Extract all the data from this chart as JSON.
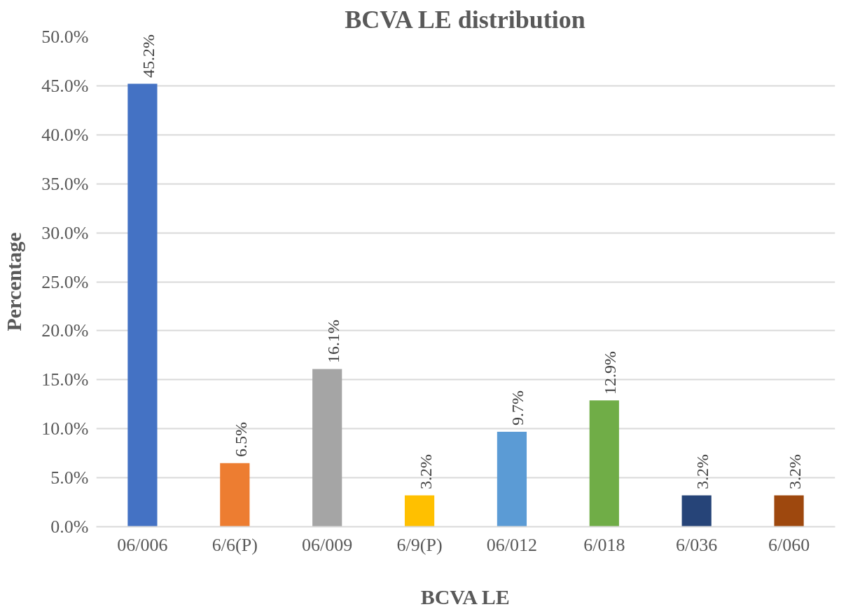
{
  "chart_data": {
    "type": "bar",
    "title": "BCVA LE distribution",
    "xlabel": "BCVA LE",
    "ylabel": "Percentage",
    "categories": [
      "06/006",
      "6/6(P)",
      "06/009",
      "6/9(P)",
      "06/012",
      "6/018",
      "6/036",
      "6/060"
    ],
    "values": [
      45.2,
      6.5,
      16.1,
      3.2,
      9.7,
      12.9,
      3.2,
      3.2
    ],
    "colors": [
      "#4472c4",
      "#ed7d31",
      "#a5a5a5",
      "#ffc000",
      "#5b9bd5",
      "#70ad47",
      "#264478",
      "#9e480e"
    ],
    "value_labels": [
      "45.2%",
      "6.5%",
      "16.1%",
      "3.2%",
      "9.7%",
      "12.9%",
      "3.2%",
      "3.2%"
    ],
    "ylim": [
      0,
      50
    ],
    "yticks": [
      {
        "value": 0,
        "label": "0.0%"
      },
      {
        "value": 5,
        "label": "5.0%"
      },
      {
        "value": 10,
        "label": "10.0%"
      },
      {
        "value": 15,
        "label": "15.0%"
      },
      {
        "value": 20,
        "label": "20.0%"
      },
      {
        "value": 25,
        "label": "25.0%"
      },
      {
        "value": 30,
        "label": "30.0%"
      },
      {
        "value": 35,
        "label": "35.0%"
      },
      {
        "value": 40,
        "label": "40.0%"
      },
      {
        "value": 45,
        "label": "45.0%"
      },
      {
        "value": 50,
        "label": "50.0%"
      }
    ],
    "grid": "y"
  }
}
